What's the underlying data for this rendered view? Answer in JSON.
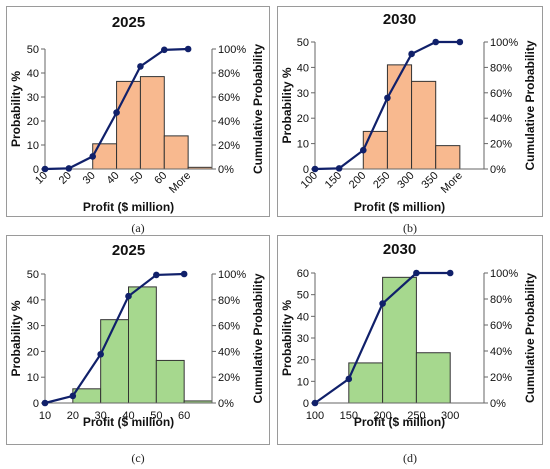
{
  "captions": [
    "(a)",
    "(b)",
    "(c)",
    "(d)"
  ],
  "chart_data": [
    {
      "type": "bar",
      "title": "2025",
      "xlabel": "Profit ($ million)",
      "ylabel": "Probability %",
      "y2label": "Cumulative Probability",
      "categories": [
        "10",
        "20",
        "30",
        "40",
        "50",
        "60",
        "More"
      ],
      "ylim": [
        0,
        50
      ],
      "yticks": [
        "0",
        "10",
        "20",
        "30",
        "40",
        "50"
      ],
      "y2ticks": [
        "0%",
        "20%",
        "40%",
        "60%",
        "80%",
        "100%"
      ],
      "bar_color": "#F8B98F",
      "line_color": "#10206A",
      "series": [
        {
          "name": "Probability %",
          "values": [
            0,
            0,
            10.5,
            36.5,
            38.5,
            13.8,
            0.7
          ]
        },
        {
          "name": "Cumulative Probability",
          "values": [
            0,
            0.5,
            10.5,
            47,
            85.5,
            99.3,
            100
          ]
        }
      ]
    },
    {
      "type": "bar",
      "title": "2030",
      "xlabel": "Profit ($ million)",
      "ylabel": "Probability %",
      "y2label": "Cumulative Probability",
      "categories": [
        "100",
        "150",
        "200",
        "250",
        "300",
        "350",
        "More"
      ],
      "ylim": [
        0,
        50
      ],
      "yticks": [
        "0",
        "10",
        "20",
        "30",
        "40",
        "50"
      ],
      "y2ticks": [
        "0%",
        "20%",
        "40%",
        "60%",
        "80%",
        "100%"
      ],
      "bar_color": "#F8B98F",
      "line_color": "#10206A",
      "series": [
        {
          "name": "Probability %",
          "values": [
            0,
            0,
            14.8,
            41,
            34.5,
            9.2,
            0
          ]
        },
        {
          "name": "Cumulative Probability",
          "values": [
            0,
            0.5,
            14.8,
            56,
            90.6,
            100,
            100
          ]
        }
      ]
    },
    {
      "type": "bar",
      "title": "2025",
      "xlabel": "Profit ($ million)",
      "ylabel": "Probability %",
      "y2label": "Cumulative Probability",
      "categories": [
        "10",
        "20",
        "30",
        "40",
        "50",
        "60"
      ],
      "ylim": [
        0,
        50
      ],
      "yticks": [
        "0",
        "10",
        "20",
        "30",
        "40",
        "50"
      ],
      "y2ticks": [
        "0%",
        "20%",
        "40%",
        "60%",
        "80%",
        "100%"
      ],
      "bar_color": "#A6D88E",
      "line_color": "#10206A",
      "series": [
        {
          "name": "Probability %",
          "values": [
            0,
            5.5,
            32.3,
            45,
            16.5,
            0.8
          ]
        },
        {
          "name": "Cumulative Probability",
          "values": [
            0,
            5.5,
            37.8,
            82.8,
            99.3,
            100
          ]
        }
      ]
    },
    {
      "type": "bar",
      "title": "2030",
      "xlabel": "Profit ($ million)",
      "ylabel": "Probability %",
      "y2label": "Cumulative Probability",
      "categories": [
        "100",
        "150",
        "200",
        "250",
        "300"
      ],
      "ylim": [
        0,
        60
      ],
      "yticks": [
        "0",
        "10",
        "20",
        "30",
        "40",
        "50",
        "60"
      ],
      "y2ticks": [
        "0%",
        "20%",
        "40%",
        "60%",
        "80%",
        "100%"
      ],
      "bar_color": "#A6D88E",
      "line_color": "#10206A",
      "series": [
        {
          "name": "Probability %",
          "values": [
            0,
            18.5,
            58,
            23.2,
            0
          ]
        },
        {
          "name": "Cumulative Probability",
          "values": [
            0,
            18.5,
            76.5,
            100,
            100
          ]
        }
      ]
    }
  ]
}
